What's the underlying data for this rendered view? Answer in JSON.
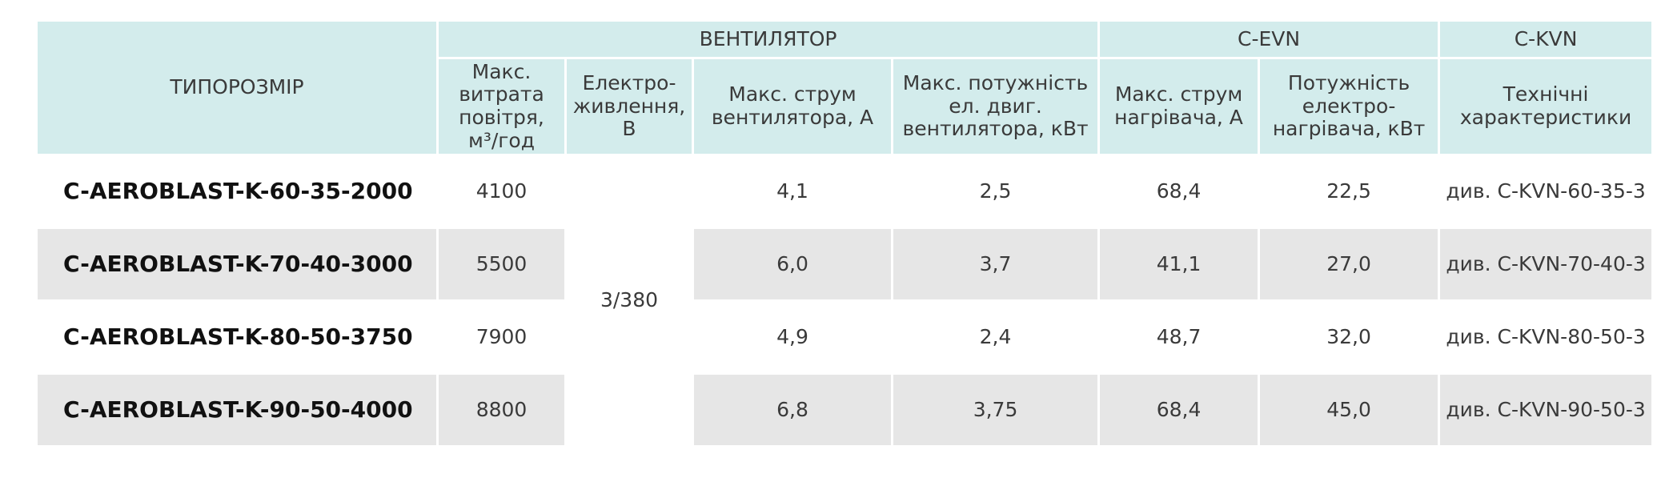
{
  "table": {
    "groups": [
      "ТИПОРОЗМІР",
      "ВЕНТИЛЯТОР",
      "C-EVN",
      "C-KVN"
    ],
    "subheaders": [
      "Макс. витрата повітря, м³/год",
      "Електро-живлення, В",
      "Макс. струм вентилятора, А",
      "Макс. потужність ел. двиг. вентилятора, кВт",
      "Макс. струм нагрівача, А",
      "Потужність електро-нагрівача, кВт",
      "Технічні характеристики"
    ],
    "power_supply": "3/380",
    "rows": [
      [
        "C-AEROBLAST-K-60-35-2000",
        "4100",
        "4,1",
        "2,5",
        "68,4",
        "22,5",
        "див. C-KVN-60-35-3"
      ],
      [
        "C-AEROBLAST-K-70-40-3000",
        "5500",
        "6,0",
        "3,7",
        "41,1",
        "27,0",
        "див. C-KVN-70-40-3"
      ],
      [
        "C-AEROBLAST-K-80-50-3750",
        "7900",
        "4,9",
        "2,4",
        "48,7",
        "32,0",
        "див. C-KVN-80-50-3"
      ],
      [
        "C-AEROBLAST-K-90-50-4000",
        "8800",
        "6,8",
        "3,75",
        "68,4",
        "45,0",
        "див. C-KVN-90-50-3"
      ]
    ]
  }
}
